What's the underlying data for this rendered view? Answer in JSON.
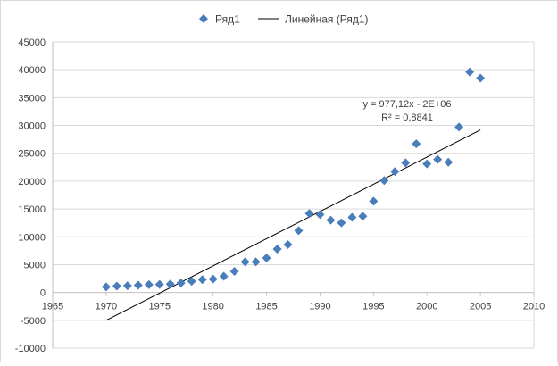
{
  "chart_data": {
    "type": "scatter",
    "title": "",
    "xlabel": "",
    "ylabel": "",
    "xlim": [
      1965,
      2010
    ],
    "ylim": [
      -10000,
      45000
    ],
    "x_ticks": [
      "1965",
      "1970",
      "1975",
      "1980",
      "1985",
      "1990",
      "1995",
      "2000",
      "2005",
      "2010"
    ],
    "y_ticks": [
      "-10000",
      "-5000",
      "0",
      "5000",
      "10000",
      "15000",
      "20000",
      "25000",
      "30000",
      "35000",
      "40000",
      "45000"
    ],
    "grid": "horizontal",
    "legend_position": "top",
    "series": [
      {
        "name": "Ряд1",
        "marker": "diamond",
        "color": "#4a7ebb",
        "x": [
          1970,
          1971,
          1972,
          1973,
          1974,
          1975,
          1976,
          1977,
          1978,
          1979,
          1980,
          1981,
          1982,
          1983,
          1984,
          1985,
          1986,
          1987,
          1988,
          1989,
          1990,
          1991,
          1992,
          1993,
          1994,
          1995,
          1996,
          1997,
          1998,
          1999,
          2000,
          2001,
          2002,
          2003,
          2004,
          2005
        ],
        "y": [
          1000,
          1150,
          1200,
          1300,
          1400,
          1450,
          1500,
          1700,
          2000,
          2300,
          2400,
          2900,
          3800,
          5500,
          5500,
          6200,
          7800,
          8600,
          11100,
          14200,
          14000,
          13000,
          12500,
          13500,
          13700,
          16400,
          20100,
          21700,
          23300,
          26700,
          23100,
          23900,
          23400,
          29700,
          39600,
          38500
        ]
      }
    ],
    "trendline": {
      "name": "Линейная (Ряд1)",
      "type": "linear",
      "color": "#000000",
      "x": [
        1970,
        2005
      ],
      "y": [
        -5000,
        29200
      ],
      "equation": "y = 977,12x - 2E+06",
      "r_squared": "R² = 0,8841"
    }
  }
}
